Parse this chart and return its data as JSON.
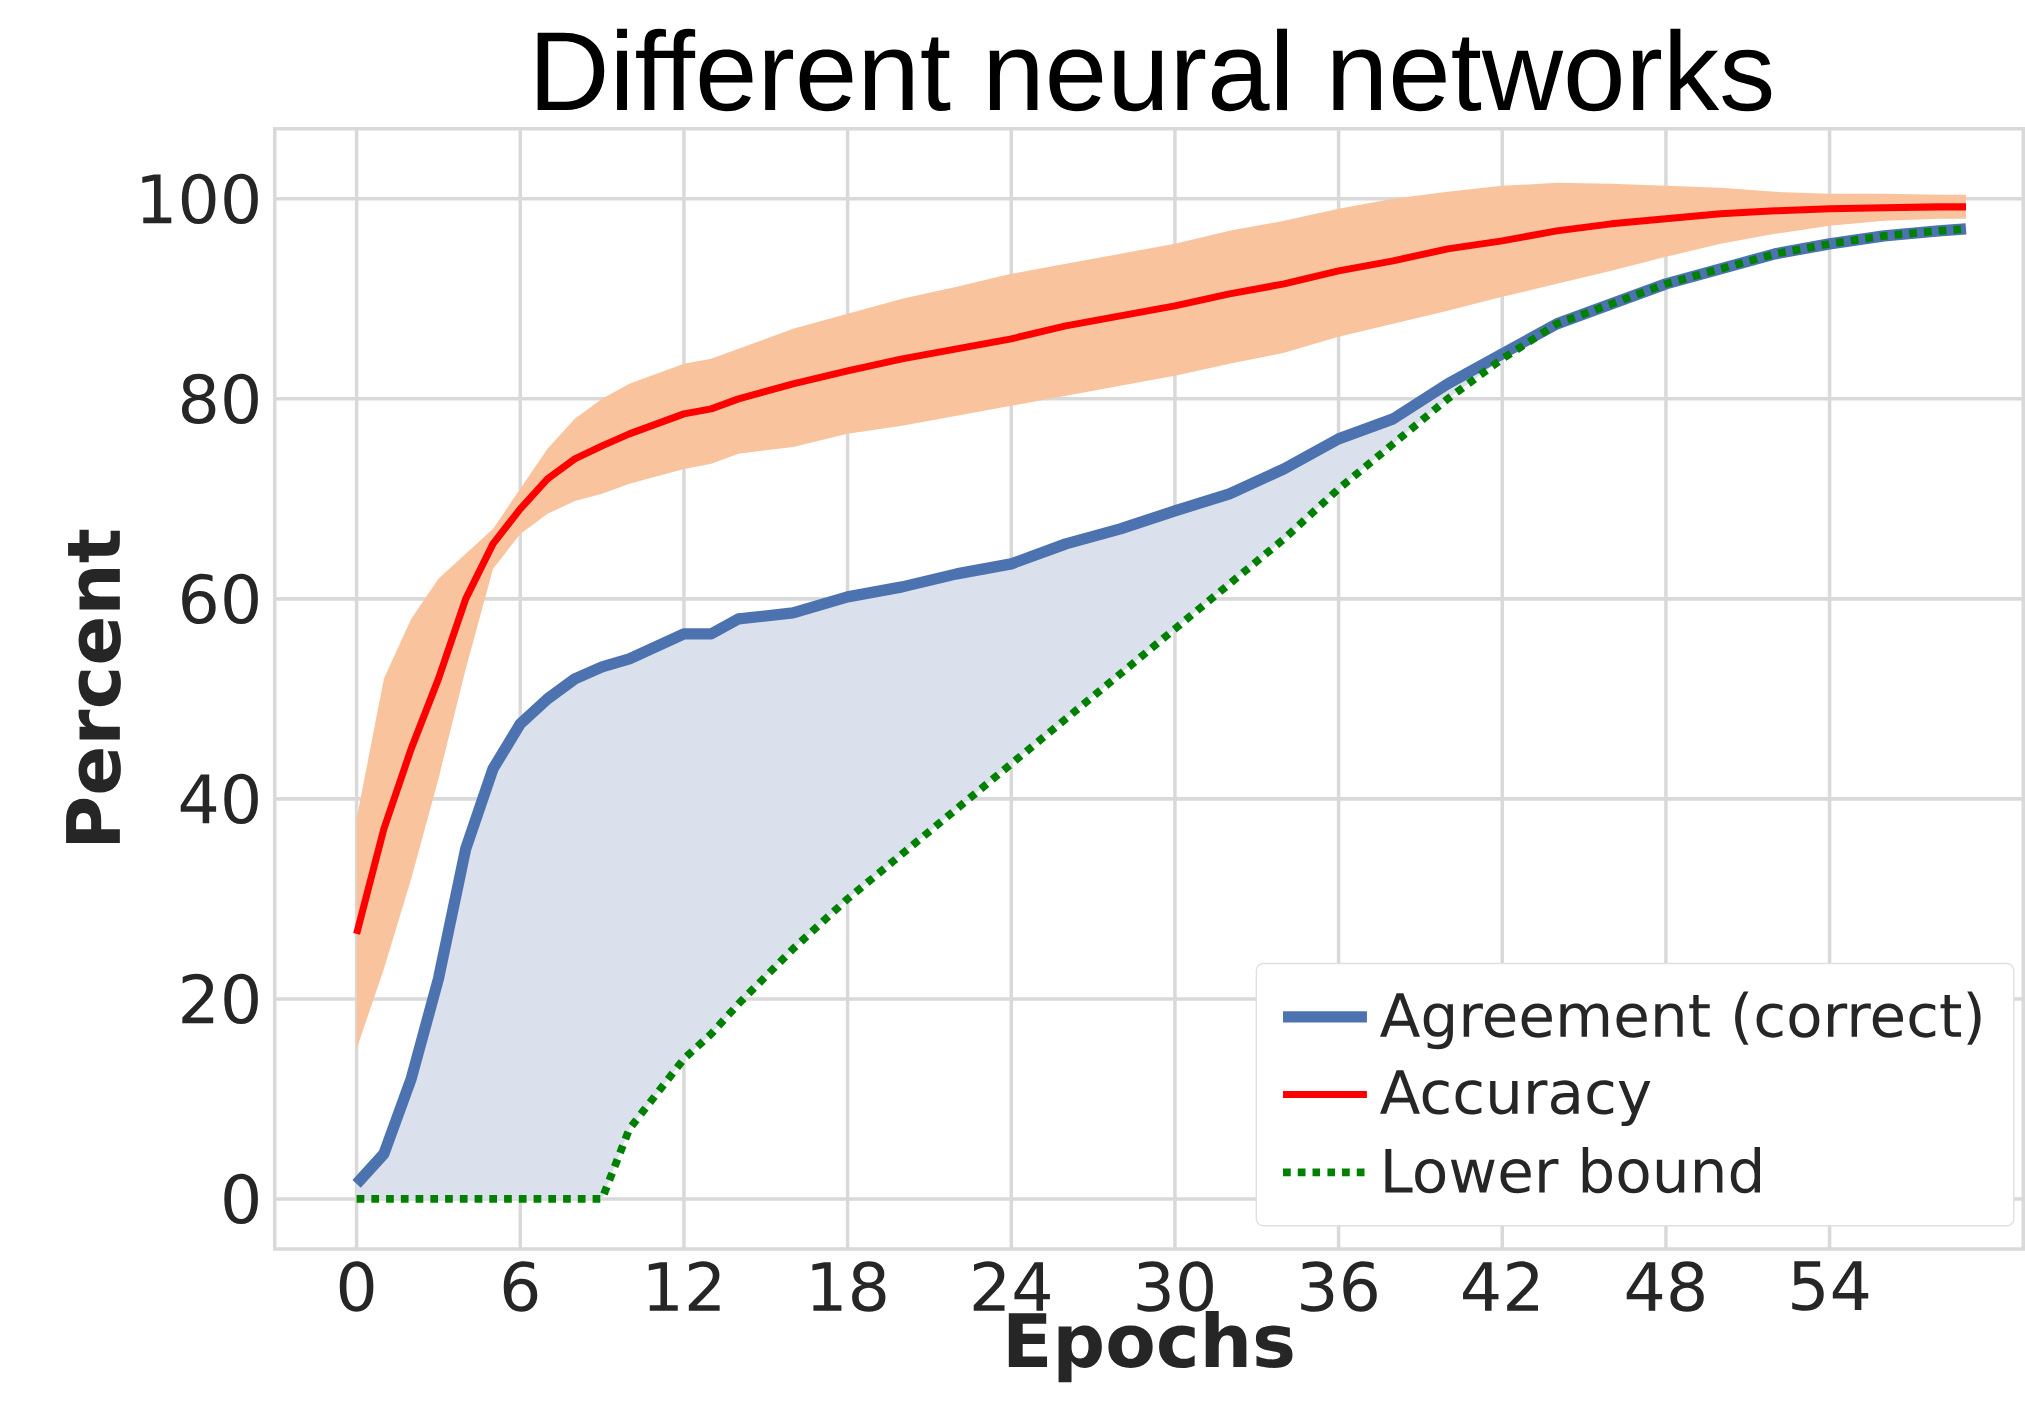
{
  "chart_data": {
    "type": "line",
    "title": "Different neural networks",
    "xlabel": "Epochs",
    "ylabel": "Percent",
    "x": [
      0,
      1,
      2,
      3,
      4,
      5,
      6,
      7,
      8,
      9,
      10,
      12,
      13,
      14,
      16,
      18,
      20,
      22,
      24,
      26,
      28,
      30,
      32,
      34,
      36,
      38,
      40,
      42,
      44,
      46,
      48,
      50,
      52,
      54,
      56,
      58,
      59
    ],
    "series": [
      {
        "name": "Agreement (correct)",
        "color": "#4c72b0",
        "line_style": "solid",
        "values": [
          1.5,
          4.5,
          12,
          22,
          35,
          43,
          47.5,
          50,
          52,
          53.2,
          54,
          56.5,
          56.5,
          58,
          58.6,
          60.2,
          61.2,
          62.5,
          63.5,
          65.5,
          67,
          68.8,
          70.5,
          73,
          76,
          78,
          81.5,
          84.5,
          87.5,
          89.5,
          91.5,
          93,
          94.5,
          95.5,
          96.3,
          96.8,
          97
        ],
        "lower": [
          0,
          0,
          0,
          0,
          0,
          0,
          0,
          0,
          0,
          0,
          7,
          14,
          16.5,
          19.5,
          25,
          30,
          34.5,
          39,
          43.5,
          48,
          52.5,
          57,
          61.5,
          66,
          71,
          75.5,
          80,
          84,
          87.5,
          89.5,
          91.5,
          93,
          94.5,
          95.5,
          96.3,
          96.8,
          97
        ],
        "upper": [
          1.5,
          4.5,
          12,
          22,
          35,
          43,
          47.5,
          50,
          52,
          53.2,
          54,
          56.5,
          56.5,
          58,
          58.6,
          60.2,
          61.2,
          62.5,
          63.5,
          65.5,
          67,
          68.8,
          70.5,
          73,
          76,
          78,
          81.5,
          84.5,
          87.5,
          89.5,
          91.5,
          93,
          94.5,
          95.5,
          96.3,
          96.8,
          97
        ]
      },
      {
        "name": "Accuracy",
        "color": "#ff0000",
        "line_style": "solid",
        "values": [
          26.5,
          37,
          45,
          52,
          60,
          65.5,
          69,
          72,
          74,
          75.3,
          76.5,
          78.5,
          79,
          80,
          81.5,
          82.8,
          84,
          85,
          86,
          87.3,
          88.3,
          89.3,
          90.5,
          91.5,
          92.8,
          93.8,
          95,
          95.8,
          96.8,
          97.5,
          98,
          98.5,
          98.8,
          99,
          99.1,
          99.2,
          99.2
        ],
        "lower": [
          15,
          23,
          32,
          42,
          53,
          63,
          66.5,
          68.5,
          69.8,
          70.5,
          71.5,
          73,
          73.5,
          74.5,
          75.2,
          76.5,
          77.3,
          78.3,
          79.3,
          80.3,
          81.3,
          82.3,
          83.5,
          84.6,
          86.2,
          87.5,
          88.8,
          90.2,
          91.5,
          92.8,
          94.2,
          95.5,
          96.5,
          97.3,
          97.8,
          98,
          98
        ],
        "upper": [
          38,
          52,
          58,
          62,
          64.5,
          67,
          71,
          75,
          78,
          80,
          81.5,
          83.5,
          84,
          85,
          87,
          88.5,
          90,
          91.2,
          92.5,
          93.5,
          94.5,
          95.5,
          96.8,
          97.8,
          99,
          100,
          100.7,
          101.3,
          101.6,
          101.5,
          101.3,
          101.1,
          100.7,
          100.5,
          100.5,
          100.4,
          100.4
        ]
      },
      {
        "name": "Lower bound",
        "color": "#008000",
        "line_style": "dotted",
        "values": [
          0,
          0,
          0,
          0,
          0,
          0,
          0,
          0,
          0,
          0,
          7,
          14,
          16.5,
          19.5,
          25,
          30,
          34.5,
          39,
          43.5,
          48,
          52.5,
          57,
          61.5,
          66,
          71,
          75.5,
          80,
          84,
          87.5,
          89.5,
          91.5,
          93,
          94.5,
          95.5,
          96.3,
          96.8,
          97
        ]
      }
    ],
    "xlim": [
      -3,
      61.1
    ],
    "ylim": [
      -5,
      107
    ],
    "xticks": [
      0,
      6,
      12,
      18,
      24,
      30,
      36,
      42,
      48,
      54
    ],
    "yticks": [
      0,
      20,
      40,
      60,
      80,
      100
    ],
    "grid": true,
    "legend": "bottom right",
    "marker": "none"
  }
}
